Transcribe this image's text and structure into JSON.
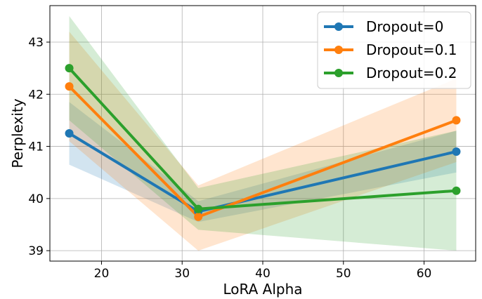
{
  "chart_data": {
    "type": "line",
    "title": "",
    "xlabel": "LoRA Alpha",
    "ylabel": "Perplexity",
    "x": [
      16,
      32,
      64
    ],
    "xlim": [
      13.6,
      66.4
    ],
    "ylim": [
      38.8,
      43.7
    ],
    "xticks": [
      20,
      30,
      40,
      50,
      60
    ],
    "yticks": [
      39,
      40,
      41,
      42,
      43
    ],
    "grid": true,
    "legend_position": "top-right",
    "series": [
      {
        "name": "Dropout=0",
        "color": "#1f77b4",
        "values": [
          41.25,
          39.75,
          40.9
        ],
        "lower": [
          40.65,
          39.55,
          40.5
        ],
        "upper": [
          41.85,
          39.95,
          41.3
        ]
      },
      {
        "name": "Dropout=0.1",
        "color": "#ff7f0e",
        "values": [
          42.15,
          39.65,
          41.5
        ],
        "lower": [
          41.1,
          39.0,
          40.7
        ],
        "upper": [
          43.2,
          40.25,
          42.3
        ]
      },
      {
        "name": "Dropout=0.2",
        "color": "#2ca02c",
        "values": [
          42.5,
          39.8,
          40.15
        ],
        "lower": [
          41.5,
          39.4,
          39.0
        ],
        "upper": [
          43.5,
          40.2,
          41.3
        ]
      }
    ]
  }
}
